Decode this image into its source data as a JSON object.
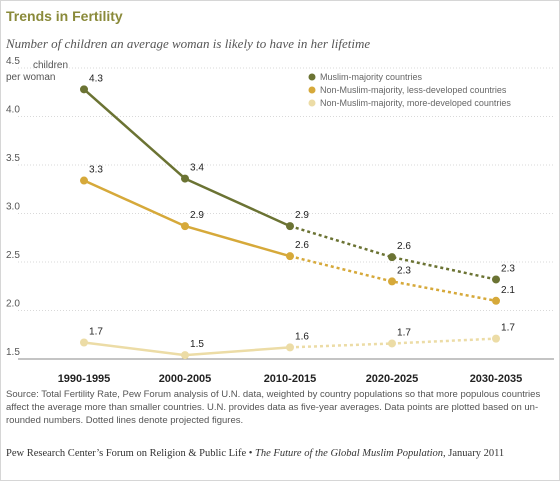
{
  "title": "Trends in Fertility",
  "subtitle": "Number of children an average woman is likely to have in her lifetime",
  "y_unit_label_1": "children",
  "y_unit_label_2": "per woman",
  "source_note": "Source: Total Fertility Rate, Pew Forum analysis of U.N. data, weighted by country populations so that more populous countries affect the average more than smaller countries. U.N. provides data as five-year averages. Data points are plotted based on un-rounded numbers. Dotted lines denote projected figures.",
  "credit_prefix": "Pew Research Center’s Forum on Religion & Public Life • ",
  "credit_title": "The Future of the Global Muslim Population",
  "credit_suffix": ", January 2011",
  "chart_data": {
    "type": "line",
    "categories": [
      "1990-1995",
      "2000-2005",
      "2010-2015",
      "2020-2025",
      "2030-2035"
    ],
    "ylim": [
      1.5,
      4.5
    ],
    "yticks": [
      "1.5",
      "2.0",
      "2.5",
      "3.0",
      "3.5",
      "4.0",
      "4.5"
    ],
    "grid": true,
    "legend_position": "top-right",
    "projected_from_index": 2,
    "series": [
      {
        "name": "Muslim-majority countries",
        "color": "#6b7333",
        "values": [
          4.28,
          3.36,
          2.87,
          2.55,
          2.32
        ],
        "labels": [
          "4.3",
          "3.4",
          "2.9",
          "2.6",
          "2.3"
        ]
      },
      {
        "name": "Non-Muslim-majority, less-developed countries",
        "color": "#d6a93a",
        "values": [
          3.34,
          2.87,
          2.56,
          2.3,
          2.1
        ],
        "labels": [
          "3.3",
          "2.9",
          "2.6",
          "2.3",
          "2.1"
        ]
      },
      {
        "name": "Non-Muslim-majority, more-developed countries",
        "color": "#ecdca6",
        "values": [
          1.67,
          1.54,
          1.62,
          1.66,
          1.71
        ],
        "labels": [
          "1.7",
          "1.5",
          "1.6",
          "1.7",
          "1.7"
        ]
      }
    ]
  }
}
